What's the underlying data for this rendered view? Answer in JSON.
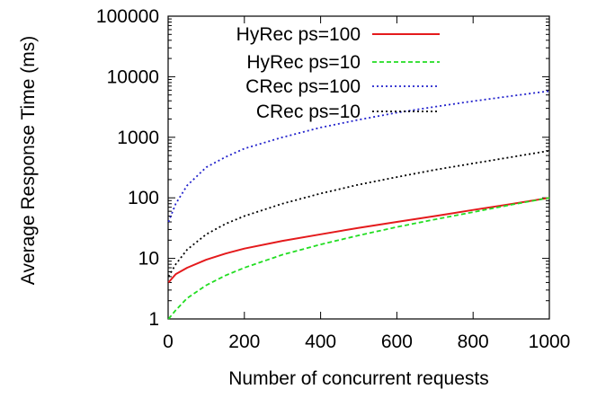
{
  "chart_data": {
    "type": "line",
    "title": "",
    "xlabel": "Number of concurrent requests",
    "ylabel": "Average Response Time (ms)",
    "xlim": [
      0,
      1000
    ],
    "ylim": [
      1,
      100000
    ],
    "yscale": "log",
    "grid": false,
    "legend_position": "top-left",
    "xticks": [
      0,
      200,
      400,
      600,
      800,
      1000
    ],
    "xtick_labels": [
      "0",
      "200",
      "400",
      "600",
      "800",
      "1000"
    ],
    "yticks": [
      1,
      10,
      100,
      1000,
      10000,
      100000
    ],
    "ytick_labels": [
      "1",
      "10",
      "100",
      "1000",
      "10000",
      "100000"
    ],
    "x": [
      1,
      20,
      50,
      100,
      150,
      200,
      300,
      400,
      500,
      600,
      700,
      800,
      900,
      1000
    ],
    "series": [
      {
        "name": "HyRec ps=100",
        "color": "#e41a1c",
        "dash": "solid",
        "values": [
          4,
          5.5,
          7,
          9.5,
          12,
          14.5,
          19.5,
          25,
          32,
          40,
          50,
          63,
          79,
          100
        ]
      },
      {
        "name": "HyRec ps=10",
        "color": "#22dd22",
        "dash": "dashed",
        "values": [
          1,
          1.4,
          2.2,
          3.6,
          5.2,
          7,
          11.5,
          17,
          24,
          33,
          44,
          58,
          77,
          100
        ]
      },
      {
        "name": "CRec ps=100",
        "color": "#2222cc",
        "dash": "dotted",
        "values": [
          40,
          80,
          160,
          320,
          470,
          650,
          1000,
          1450,
          1950,
          2550,
          3200,
          3950,
          4800,
          5800
        ]
      },
      {
        "name": "CRec ps=10",
        "color": "#000000",
        "dash": "dotted",
        "values": [
          5,
          8,
          14,
          25,
          37,
          50,
          80,
          118,
          165,
          220,
          290,
          370,
          470,
          600
        ]
      }
    ]
  }
}
